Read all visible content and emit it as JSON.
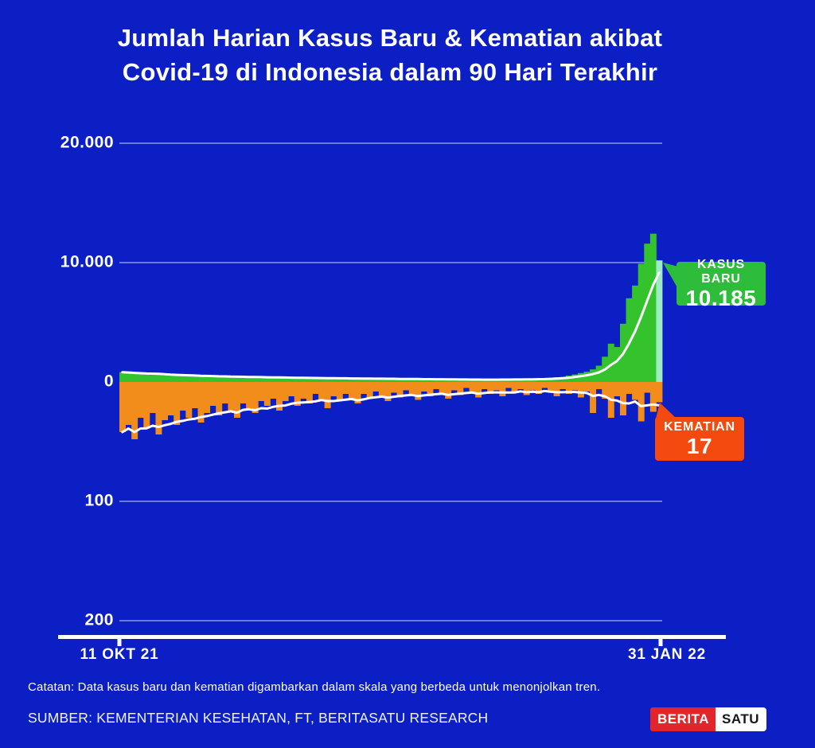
{
  "page": {
    "colors": {
      "background": "#0B1FC4",
      "case_bar": "#34C32C",
      "case_bar_highlight": "#9CEAC6",
      "death_bar": "#F28C1A",
      "case_box": "#2EBD3B",
      "death_box": "#F4490F",
      "gridline": "rgba(255,255,255,0.55)",
      "trend_line": "#FFFFFF",
      "axis": "#FFFFFF",
      "logo_red": "#E1252B"
    }
  },
  "title": {
    "line1": "Jumlah Harian Kasus Baru & Kematian akibat",
    "line2": "Covid-19 di Indonesia dalam 90 Hari Terakhir"
  },
  "chart_data": {
    "type": "bar",
    "title": "Jumlah Harian Kasus Baru & Kematian akibat Covid-19 di Indonesia dalam 90 Hari Terakhir",
    "x_axis": {
      "tick_labels": [
        "11 OKT 21",
        "31 JAN 22"
      ],
      "n_points": 90
    },
    "axis_cases": {
      "orientation": "up",
      "range": [
        0,
        20000
      ],
      "ticks": [
        {
          "label": "20.000",
          "value": 20000
        },
        {
          "label": "10.000",
          "value": 10000
        },
        {
          "label": "0",
          "value": 0
        }
      ]
    },
    "axis_deaths": {
      "orientation": "down",
      "range": [
        0,
        200
      ],
      "ticks": [
        {
          "label": "100",
          "value": 100
        },
        {
          "label": "200",
          "value": 200
        }
      ]
    },
    "series": [
      {
        "name": "KASUS BARU",
        "axis": "cases",
        "color_key": "case_bar",
        "last_value_label": "10.185",
        "values": [
          820,
          760,
          700,
          650,
          620,
          590,
          640,
          560,
          530,
          560,
          500,
          520,
          480,
          460,
          490,
          440,
          420,
          450,
          410,
          430,
          390,
          410,
          380,
          360,
          390,
          350,
          370,
          340,
          320,
          350,
          310,
          330,
          300,
          320,
          290,
          310,
          280,
          300,
          270,
          290,
          260,
          280,
          250,
          270,
          240,
          260,
          230,
          250,
          220,
          240,
          210,
          230,
          200,
          220,
          190,
          210,
          180,
          200,
          190,
          210,
          180,
          200,
          190,
          220,
          200,
          230,
          210,
          250,
          230,
          280,
          300,
          340,
          392,
          418,
          529,
          627,
          748,
          855,
          1054,
          1362,
          2116,
          3205,
          2927,
          4878,
          7010,
          8077,
          9905,
          11588,
          12422,
          10185
        ]
      },
      {
        "name": "KEMATIAN",
        "axis": "deaths",
        "color_key": "death_bar",
        "last_value_label": "17",
        "values": [
          42,
          36,
          48,
          30,
          38,
          26,
          44,
          32,
          28,
          36,
          24,
          30,
          22,
          34,
          26,
          20,
          28,
          18,
          24,
          30,
          18,
          22,
          26,
          16,
          20,
          14,
          24,
          16,
          12,
          20,
          14,
          18,
          10,
          16,
          22,
          12,
          16,
          10,
          14,
          18,
          10,
          14,
          8,
          12,
          16,
          9,
          13,
          7,
          11,
          15,
          8,
          12,
          6,
          10,
          14,
          7,
          11,
          5,
          9,
          13,
          6,
          10,
          7,
          12,
          5,
          9,
          6,
          11,
          7,
          10,
          5,
          9,
          12,
          6,
          10,
          7,
          13,
          8,
          26,
          6,
          14,
          30,
          12,
          28,
          10,
          15,
          33,
          9,
          25,
          17
        ]
      }
    ],
    "trend_lines": [
      {
        "series": "KASUS BARU",
        "window": 7,
        "color": "#FFFFFF"
      },
      {
        "series": "KEMATIAN",
        "window": 7,
        "color": "#FFFFFF"
      }
    ],
    "legend_position": "callouts-right",
    "grid": true
  },
  "callouts": {
    "kasus": {
      "label": "KASUS BARU",
      "value": "10.185"
    },
    "kematian": {
      "label": "KEMATIAN",
      "value": "17"
    }
  },
  "footer": {
    "note": "Catatan: Data kasus baru dan kematian digambarkan dalam skala yang berbeda untuk menonjolkan tren.",
    "source": "SUMBER: KEMENTERIAN KESEHATAN, FT, BERITASATU RESEARCH"
  },
  "logo": {
    "part1": "BERITA",
    "part2": "SATU"
  }
}
